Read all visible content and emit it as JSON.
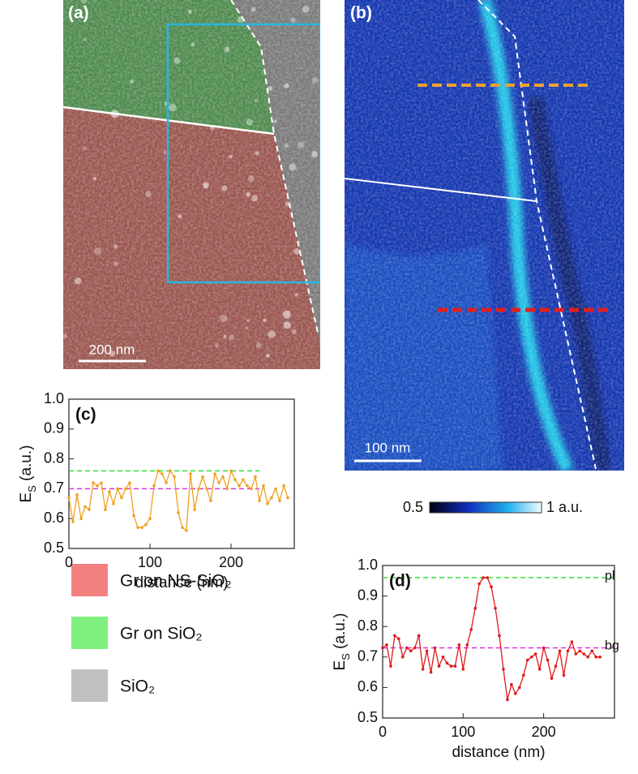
{
  "panels": {
    "a": {
      "label": "(a)",
      "scale_bar": "200 nm"
    },
    "b": {
      "label": "(b)",
      "scale_bar": "100 nm"
    }
  },
  "colorbar": {
    "min_label": "0.5",
    "max_label": "1 a.u."
  },
  "legend": [
    {
      "name": "Gr on  NS-SiO₂",
      "color": "#f47f7f"
    },
    {
      "name": "Gr on SiO₂",
      "color": "#80f080"
    },
    {
      "name": "SiO₂",
      "color": "#c0c0c0"
    }
  ],
  "chart_data": [
    {
      "type": "line",
      "label": "(c)",
      "x_label": "distance (nm)",
      "y_label": [
        "E",
        "S",
        " (a.u.)"
      ],
      "x": [
        0,
        5,
        10,
        15,
        20,
        25,
        30,
        35,
        40,
        45,
        50,
        55,
        60,
        65,
        70,
        75,
        80,
        85,
        90,
        95,
        100,
        105,
        110,
        115,
        120,
        125,
        130,
        135,
        140,
        145,
        150,
        155,
        160,
        165,
        170,
        175,
        180,
        185,
        190,
        195,
        200,
        205,
        210,
        215,
        220,
        225,
        230,
        235,
        240,
        245,
        250,
        255,
        260,
        265,
        270
      ],
      "series": [
        {
          "color": "#f0a020",
          "values": [
            0.67,
            0.59,
            0.68,
            0.6,
            0.64,
            0.63,
            0.72,
            0.71,
            0.72,
            0.63,
            0.69,
            0.65,
            0.7,
            0.67,
            0.7,
            0.72,
            0.61,
            0.57,
            0.57,
            0.58,
            0.6,
            0.71,
            0.76,
            0.75,
            0.72,
            0.76,
            0.74,
            0.62,
            0.57,
            0.56,
            0.75,
            0.63,
            0.7,
            0.74,
            0.7,
            0.66,
            0.75,
            0.72,
            0.74,
            0.7,
            0.76,
            0.73,
            0.71,
            0.73,
            0.71,
            0.7,
            0.74,
            0.66,
            0.71,
            0.65,
            0.67,
            0.7,
            0.66,
            0.71,
            0.67
          ]
        }
      ],
      "xlim": [
        0,
        278
      ],
      "ylim": [
        0.5,
        1.0
      ],
      "xticks": [
        0,
        100,
        200
      ],
      "yticks": [
        0.5,
        0.6,
        0.7,
        0.8,
        0.9,
        {
          "value": 1.0,
          "label": "1.0"
        }
      ],
      "hlines": [
        {
          "value": 0.76,
          "color": "#30e030",
          "x_end": 235
        },
        {
          "value": 0.7,
          "color": "#e030e0",
          "x_end": 235
        }
      ]
    },
    {
      "type": "line",
      "label": "(d)",
      "x_label": "distance (nm)",
      "y_label": [
        "E",
        "S",
        " (a.u.)"
      ],
      "x": [
        0,
        5,
        10,
        15,
        20,
        25,
        30,
        35,
        40,
        45,
        50,
        55,
        60,
        65,
        70,
        75,
        80,
        85,
        90,
        95,
        100,
        105,
        110,
        115,
        120,
        125,
        130,
        135,
        140,
        145,
        150,
        155,
        160,
        165,
        170,
        175,
        180,
        185,
        190,
        195,
        200,
        205,
        210,
        215,
        220,
        225,
        230,
        235,
        240,
        245,
        250,
        255,
        260,
        265,
        270
      ],
      "series": [
        {
          "color": "#e01818",
          "values": [
            0.73,
            0.74,
            0.67,
            0.77,
            0.76,
            0.7,
            0.73,
            0.72,
            0.73,
            0.77,
            0.66,
            0.72,
            0.65,
            0.73,
            0.67,
            0.7,
            0.68,
            0.67,
            0.67,
            0.74,
            0.66,
            0.74,
            0.79,
            0.86,
            0.94,
            0.96,
            0.96,
            0.93,
            0.86,
            0.77,
            0.66,
            0.56,
            0.61,
            0.58,
            0.6,
            0.64,
            0.69,
            0.7,
            0.71,
            0.66,
            0.73,
            0.69,
            0.63,
            0.67,
            0.72,
            0.64,
            0.72,
            0.75,
            0.71,
            0.72,
            0.71,
            0.7,
            0.72,
            0.7,
            0.7
          ]
        }
      ],
      "xlim": [
        0,
        288
      ],
      "ylim": [
        0.5,
        1.0
      ],
      "xticks": [
        0,
        100,
        200
      ],
      "yticks": [
        0.5,
        0.6,
        0.7,
        0.8,
        0.9,
        {
          "value": 1.0,
          "label": "1.0"
        }
      ],
      "hlines": [
        {
          "value": 0.96,
          "color": "#30e030",
          "label": "pl"
        },
        {
          "value": 0.73,
          "color": "#e030e0",
          "label": "bg"
        }
      ]
    }
  ]
}
